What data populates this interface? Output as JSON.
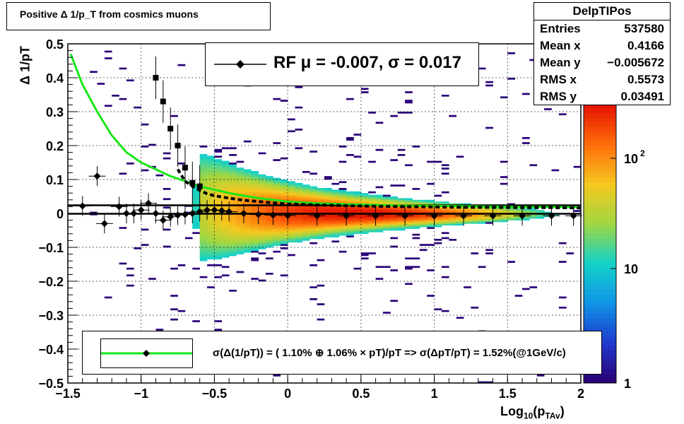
{
  "title": "Positive Δ 1/p_T from cosmics muons",
  "stats": {
    "name": "DelpTIPos",
    "rows": [
      {
        "key": "Entries",
        "value": "537580"
      },
      {
        "key": "Mean x",
        "value": "0.4166"
      },
      {
        "key": "Mean y",
        "value": "−0.005672"
      },
      {
        "key": "RMS x",
        "value": "0.5573"
      },
      {
        "key": "RMS y",
        "value": "0.03491"
      }
    ]
  },
  "legend_rf": "RF μ = -0.007, σ =   0.017",
  "legend_fit": "σ(Δ(1/pT)) = ( 1.10% ⊕  1.06% × pT)/pT => σ(ΔpT/pT) =  1.52%(@1GeV/c)",
  "colors": {
    "fit_curve": "#19e619",
    "markers": "#000000",
    "palette": [
      "#2a0078",
      "#1f3cd0",
      "#0f96e6",
      "#14d2c8",
      "#a0d741",
      "#f5c81e",
      "#ff6e0a",
      "#e61400"
    ]
  },
  "chart_data": {
    "type": "heatmap",
    "xlabel": "Log10(pTAv)",
    "xlabel_main": "Log",
    "xlabel_sub1": "10",
    "xlabel_mid": "(p",
    "xlabel_sub2": "TAv",
    "xlabel_end": ")",
    "ylabel": "Δ 1/pT",
    "xlim": [
      -1.5,
      2.0
    ],
    "ylim": [
      -0.5,
      0.5
    ],
    "xticks": [
      -1.5,
      -1,
      -0.5,
      0,
      0.5,
      1,
      1.5,
      2
    ],
    "xtick_labels": [
      "−1.5",
      "−1",
      "−0.5",
      "0",
      "0.5",
      "1",
      "1.5",
      "2"
    ],
    "yticks": [
      -0.5,
      -0.4,
      -0.3,
      -0.2,
      -0.1,
      0,
      0.1,
      0.2,
      0.3,
      0.4,
      0.5
    ],
    "ytick_labels": [
      "−0.5",
      "−0.4",
      "−0.3",
      "−0.2",
      "−0.1",
      "0",
      "0.1",
      "0.2",
      "0.3",
      "0.4",
      "0.5"
    ],
    "z_scale": "log",
    "zticks": [
      "1",
      "10",
      "10^2"
    ],
    "grid": true,
    "fit_curve": {
      "x": [
        -1.48,
        -1.4,
        -1.3,
        -1.2,
        -1.1,
        -1.0,
        -0.9,
        -0.8,
        -0.7,
        -0.6,
        -0.5,
        -0.4,
        -0.3,
        -0.2,
        -0.1,
        0.0,
        0.2,
        0.4,
        0.6,
        0.8,
        1.0,
        1.2,
        1.4,
        1.6,
        1.8,
        2.0
      ],
      "y": [
        0.47,
        0.38,
        0.3,
        0.23,
        0.18,
        0.15,
        0.13,
        0.11,
        0.095,
        0.08,
        0.07,
        0.06,
        0.052,
        0.045,
        0.04,
        0.035,
        0.03,
        0.027,
        0.025,
        0.023,
        0.022,
        0.021,
        0.02,
        0.019,
        0.019,
        0.018
      ]
    },
    "dashed_curve": {
      "x": [
        -0.75,
        -0.7,
        -0.65,
        -0.6,
        -0.55,
        -0.5,
        -0.4,
        -0.3,
        -0.2,
        -0.1,
        0.0,
        0.2,
        0.4,
        0.6,
        0.8,
        1.0,
        1.2,
        1.4,
        1.6,
        1.8,
        2.0
      ],
      "y": [
        0.13,
        0.095,
        0.08,
        0.068,
        0.058,
        0.052,
        0.045,
        0.039,
        0.035,
        0.031,
        0.028,
        0.025,
        0.023,
        0.021,
        0.02,
        0.019,
        0.018,
        0.018,
        0.017,
        0.017,
        0.016
      ]
    },
    "horizontal_lines": [
      0.024,
      -0.001
    ],
    "mean_markers": {
      "x": [
        -1.4,
        -1.3,
        -1.25,
        -1.15,
        -1.1,
        -1.05,
        -1.0,
        -0.95,
        -0.9,
        -0.85,
        -0.8,
        -0.75,
        -0.7,
        -0.65,
        -0.6,
        -0.55,
        -0.5,
        -0.45,
        -0.4,
        -0.3,
        -0.2,
        -0.1,
        0.0,
        0.2,
        0.4,
        0.6,
        0.8,
        1.0,
        1.2,
        1.4,
        1.6,
        1.8,
        1.95
      ],
      "y": [
        0.022,
        0.11,
        -0.03,
        0.02,
        0.0,
        0.0,
        0.01,
        0.03,
        0.0,
        -0.02,
        -0.01,
        -0.005,
        -0.003,
        0.0,
        0.005,
        0.01,
        0.01,
        0.008,
        0.005,
        0.0,
        -0.003,
        -0.005,
        -0.006,
        -0.007,
        -0.007,
        -0.007,
        -0.007,
        -0.007,
        -0.007,
        -0.007,
        -0.007,
        -0.007,
        -0.007
      ]
    },
    "sigma_markers": {
      "x": [
        -0.9,
        -0.85,
        -0.8,
        -0.75,
        -0.7,
        -0.65,
        -0.6
      ],
      "y": [
        0.4,
        0.33,
        0.25,
        0.2,
        0.135,
        0.09,
        0.08
      ]
    }
  }
}
